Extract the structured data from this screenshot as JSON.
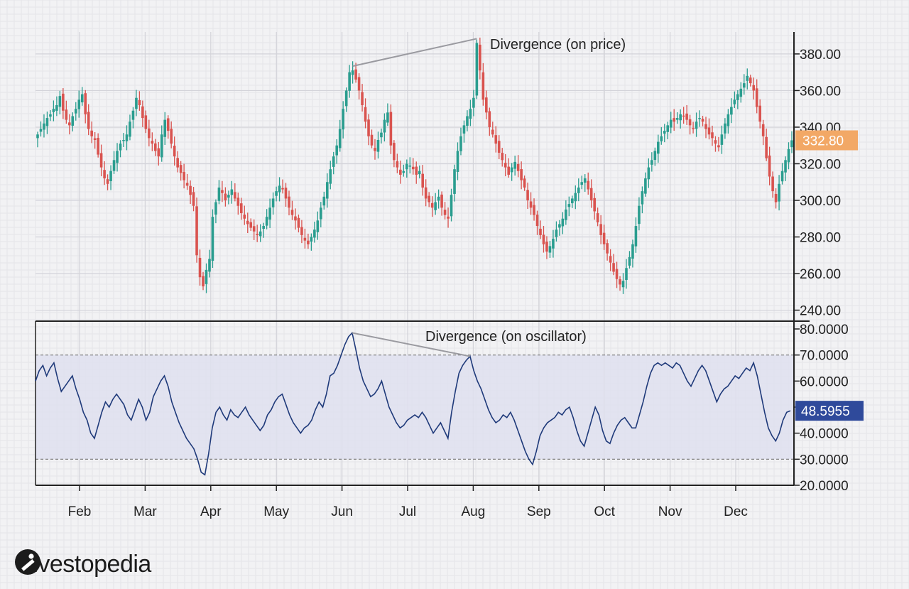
{
  "brand": {
    "name": "Investopedia"
  },
  "colors": {
    "up": "#2a9d8f",
    "down": "#d9534f",
    "osc_line": "#1f3a7a",
    "band_fill": "#dfe1ee",
    "price_badge": "#f2a866",
    "osc_badge": "#2f4a9b"
  },
  "chart_data": [
    {
      "type": "candlestick",
      "title": "",
      "x_axis": {
        "months": [
          "Feb",
          "Mar",
          "Apr",
          "May",
          "Jun",
          "Jul",
          "Aug",
          "Sep",
          "Oct",
          "Nov",
          "Dec"
        ]
      },
      "y_axis": {
        "ticks": [
          "240.00",
          "260.00",
          "280.00",
          "300.00",
          "320.00",
          "340.00",
          "360.00",
          "380.00"
        ],
        "ylim": [
          234,
          392
        ]
      },
      "last_price": "332.80",
      "annotation": {
        "text": "Divergence (on price)",
        "from_close": 371,
        "to_close": 386
      },
      "closes": [
        336,
        339,
        342,
        345,
        347,
        350,
        352,
        357,
        349,
        344,
        341,
        346,
        350,
        355,
        358,
        347,
        339,
        335,
        333,
        325,
        318,
        312,
        309,
        316,
        322,
        327,
        331,
        333,
        336,
        343,
        349,
        356,
        352,
        345,
        339,
        334,
        331,
        327,
        324,
        336,
        344,
        338,
        331,
        324,
        318,
        315,
        311,
        308,
        303,
        297,
        270,
        258,
        253,
        262,
        268,
        291,
        299,
        307,
        304,
        300,
        303,
        306,
        301,
        297,
        293,
        290,
        287,
        285,
        283,
        281,
        283,
        286,
        291,
        296,
        301,
        305,
        308,
        306,
        301,
        296,
        292,
        289,
        285,
        281,
        278,
        276,
        280,
        284,
        289,
        296,
        302,
        310,
        317,
        324,
        330,
        339,
        350,
        360,
        370,
        371,
        366,
        360,
        352,
        343,
        335,
        330,
        327,
        333,
        337,
        344,
        348,
        330,
        322,
        318,
        314,
        316,
        320,
        319,
        317,
        314,
        316,
        307,
        301,
        299,
        296,
        299,
        302,
        296,
        292,
        290,
        303,
        317,
        327,
        335,
        341,
        346,
        350,
        356,
        386,
        371,
        355,
        348,
        340,
        336,
        331,
        326,
        322,
        318,
        314,
        318,
        321,
        316,
        311,
        307,
        300,
        296,
        292,
        286,
        281,
        276,
        272,
        275,
        279,
        284,
        287,
        290,
        295,
        298,
        301,
        304,
        307,
        310,
        312,
        306,
        300,
        294,
        288,
        281,
        276,
        271,
        266,
        261,
        257,
        254,
        256,
        263,
        269,
        276,
        286,
        297,
        305,
        312,
        318,
        322,
        327,
        332,
        335,
        338,
        341,
        344,
        343,
        345,
        347,
        346,
        344,
        341,
        339,
        343,
        345,
        343,
        339,
        336,
        334,
        331,
        329,
        336,
        342,
        347,
        351,
        355,
        358,
        361,
        364,
        368,
        364,
        360,
        351,
        343,
        335,
        323,
        313,
        305,
        299,
        309,
        316,
        322,
        328,
        332.8
      ]
    },
    {
      "type": "line",
      "title": "",
      "y_axis": {
        "ticks": [
          "20.0000",
          "30.0000",
          "40.0000",
          "50.0000",
          "60.0000",
          "70.0000",
          "80.0000"
        ],
        "ylim": [
          20,
          83
        ]
      },
      "band": [
        30,
        70
      ],
      "last_value": "48.5955",
      "annotation": {
        "text": "Divergence (on oscillator)",
        "from_value": 78.5,
        "to_value": 69.5
      },
      "values": [
        60,
        64,
        66,
        62,
        65,
        67,
        61,
        56,
        58,
        60,
        62,
        57,
        53,
        48,
        45,
        40,
        38,
        43,
        48,
        52,
        50,
        53,
        55,
        53,
        51,
        47,
        45,
        49,
        53,
        50,
        45,
        48,
        54,
        57,
        60,
        62,
        58,
        52,
        48,
        44,
        41,
        38,
        36,
        34,
        30,
        25,
        24,
        32,
        42,
        48,
        50,
        47,
        45,
        49,
        47,
        46,
        48,
        50,
        47,
        45,
        43,
        41,
        43,
        47,
        49,
        52,
        54,
        55,
        51,
        47,
        44,
        42,
        40,
        42,
        43,
        45,
        49,
        52,
        50,
        55,
        62,
        63,
        66,
        70,
        74,
        77,
        78.5,
        72,
        65,
        60,
        57,
        54,
        55,
        57,
        60,
        55,
        50,
        47,
        44,
        42,
        43,
        45,
        46,
        47,
        46,
        48,
        46,
        43,
        40,
        42,
        44,
        41,
        38,
        48,
        56,
        63,
        66,
        68,
        69.5,
        64,
        60,
        57,
        53,
        49,
        46,
        44,
        45,
        47,
        46,
        48,
        45,
        41,
        37,
        33,
        30,
        28,
        33,
        39,
        42,
        44,
        45,
        46,
        48,
        47,
        49,
        50,
        46,
        41,
        37,
        35,
        40,
        45,
        50,
        47,
        41,
        37,
        36,
        40,
        43,
        45,
        46,
        44,
        42,
        42,
        47,
        52,
        58,
        63,
        66,
        67,
        66,
        67,
        66,
        65,
        67,
        66,
        63,
        60,
        58,
        61,
        64,
        66,
        64,
        60,
        56,
        52,
        55,
        57,
        58,
        60,
        62,
        61,
        63,
        65,
        64,
        67,
        62,
        55,
        48,
        42,
        39,
        37,
        40,
        45,
        48,
        48.5955
      ]
    }
  ]
}
